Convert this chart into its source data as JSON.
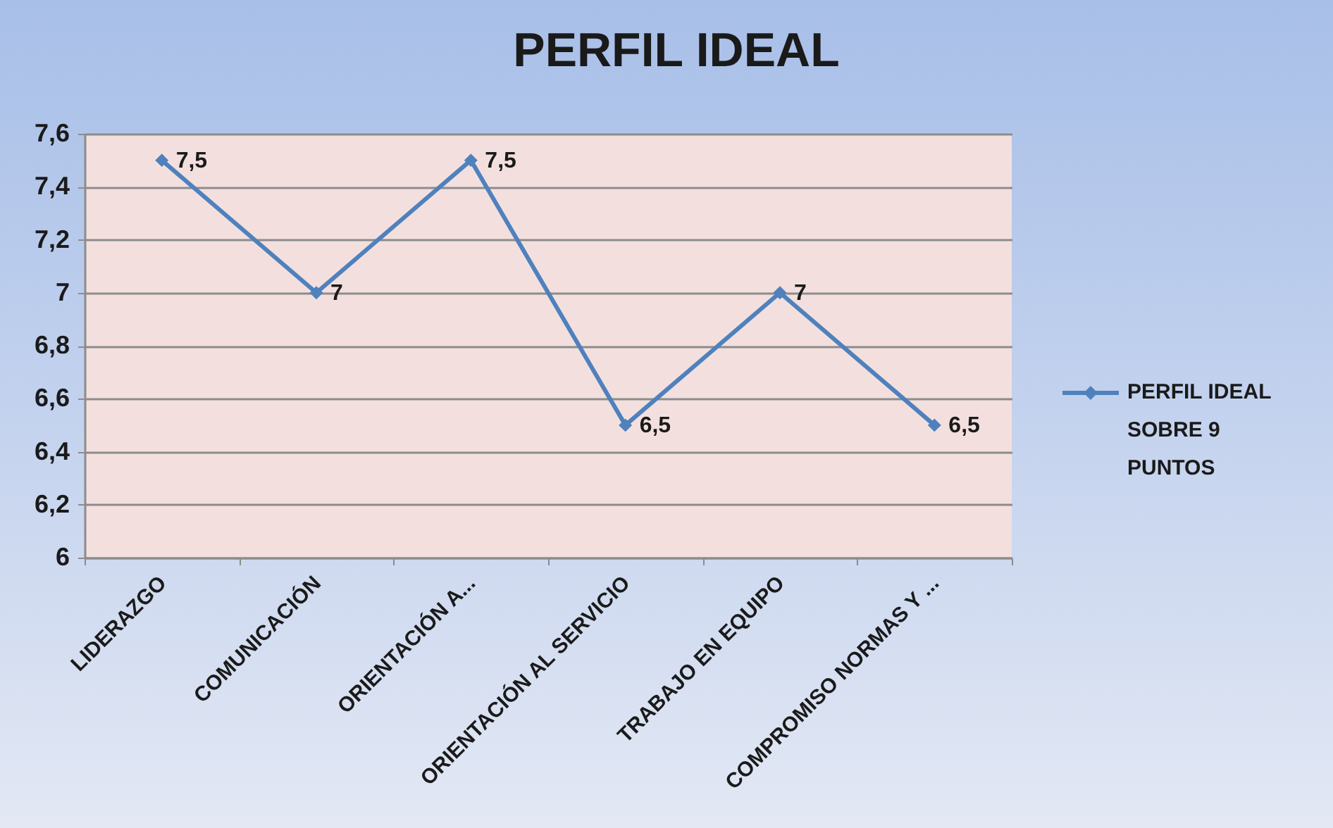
{
  "chart_data": {
    "type": "line",
    "title": "PERFIL IDEAL",
    "categories": [
      "LIDERAZGO",
      "COMUNICACIÓN",
      "ORIENTACIÓN A...",
      "ORIENTACIÓN AL SERVICIO",
      "TRABAJO EN EQUIPO",
      "COMPROMISO NORMAS Y ..."
    ],
    "series": [
      {
        "name": "PERFIL IDEAL SOBRE 9 PUNTOS",
        "color": "#4f81bd",
        "values": [
          7.5,
          7,
          7.5,
          6.5,
          7,
          6.5
        ],
        "value_labels": [
          "7,5",
          "7",
          "7,5",
          "6,5",
          "7",
          "6,5"
        ]
      }
    ],
    "ylim": [
      6,
      7.6
    ],
    "yticks": [
      6,
      {
        "value": 6.2,
        "label": "6,2"
      },
      {
        "value": 6.4,
        "label": "6,4"
      },
      {
        "value": 6.6,
        "label": "6,6"
      },
      {
        "value": 6.8,
        "label": "6,8"
      },
      7,
      {
        "value": 7.2,
        "label": "7,2"
      },
      {
        "value": 7.4,
        "label": "7,4"
      },
      {
        "value": 7.6,
        "label": "7,6"
      }
    ],
    "grid": "y",
    "legend": "right",
    "marker": "diamond",
    "line_style": "solid"
  }
}
